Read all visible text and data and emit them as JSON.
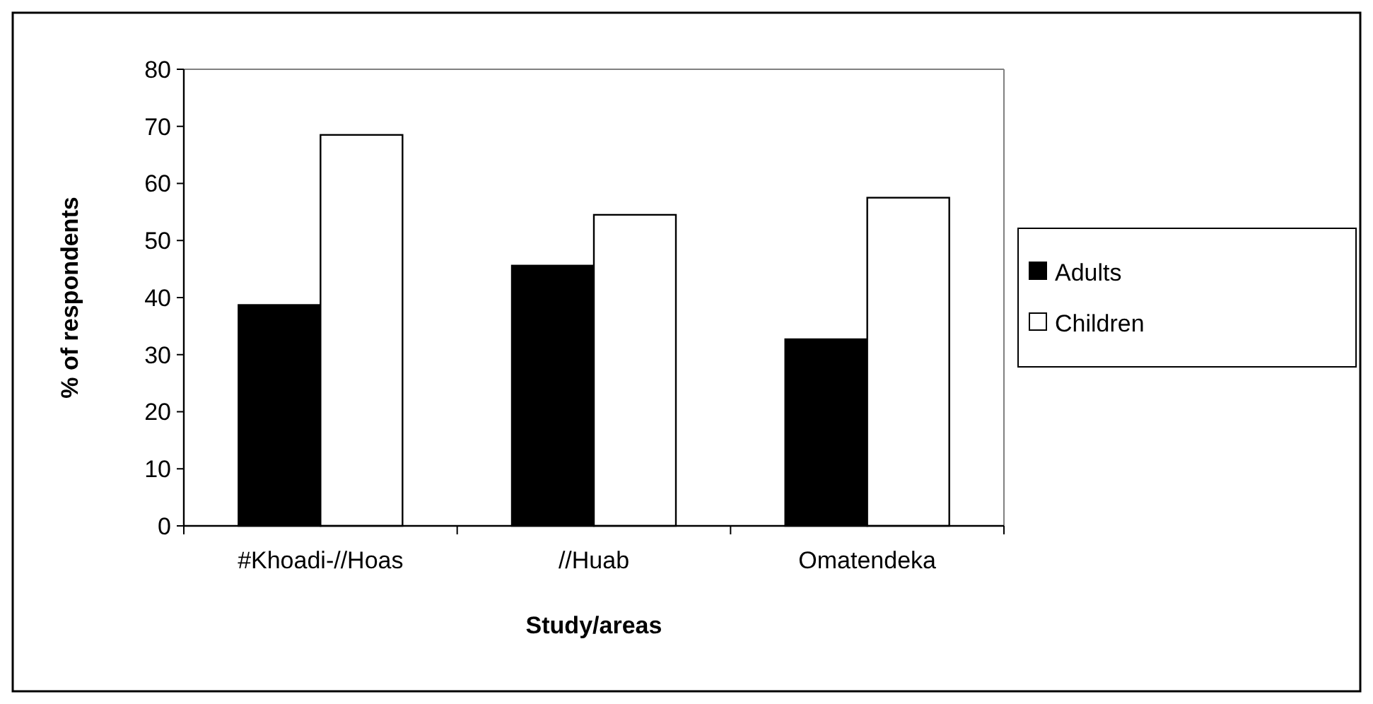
{
  "chart_data": {
    "type": "bar",
    "xlabel": "Study/areas",
    "ylabel": "% of respondents",
    "categories": [
      "#Khoadi-//Hoas",
      "//Huab",
      "Omatendeka"
    ],
    "series": [
      {
        "name": "Adults",
        "color": "#000000",
        "values": [
          38.7,
          45.6,
          32.7
        ]
      },
      {
        "name": "Children",
        "color": "#ffffff",
        "values": [
          68.5,
          54.5,
          57.5
        ]
      }
    ],
    "ylim": [
      0,
      80
    ],
    "yticks": [
      0,
      10,
      20,
      30,
      40,
      50,
      60,
      70,
      80
    ],
    "grid": false,
    "legend": "right"
  }
}
